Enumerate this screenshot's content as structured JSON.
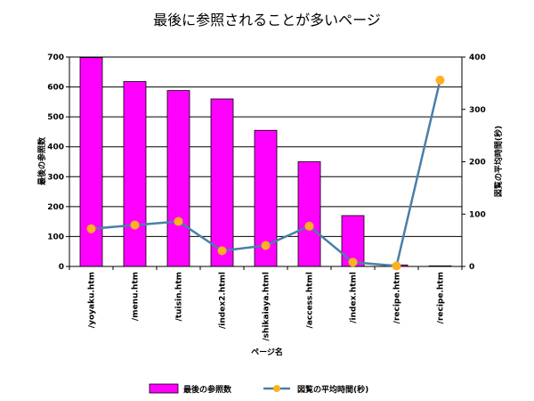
{
  "colors": {
    "bar_fill": "#ff00ff",
    "bar_stroke": "#000000",
    "line": "#4a7fa8",
    "marker": "#ffb020"
  },
  "chart_data": {
    "type": "bar",
    "title": "最後に参照されることが多いページ",
    "xlabel": "ページ名",
    "ylabel_left": "最後の参照数",
    "ylabel_right": "図覧の平均時間(秒)",
    "ylim_left": [
      0,
      700
    ],
    "ylim_right": [
      0,
      400
    ],
    "yticks_left": [
      0,
      100,
      200,
      300,
      400,
      500,
      600,
      700
    ],
    "yticks_right": [
      0,
      100,
      200,
      300,
      400
    ],
    "grid": true,
    "legend_position": "bottom",
    "categories": [
      "/yoyaku.htm",
      "/menu.htm",
      "/tuisin.htm",
      "/index2.html",
      "/shikaiaya.html",
      "/access.html",
      "/index.html",
      "/recipe.htm",
      "/recipe.htm"
    ],
    "series": [
      {
        "name": "最後の参照数",
        "type": "bar",
        "axis": "left",
        "values": [
          698,
          618,
          588,
          560,
          455,
          350,
          170,
          5,
          2
        ]
      },
      {
        "name": "図覧の平均時間(秒)",
        "type": "line",
        "axis": "right",
        "values": [
          72,
          79,
          86,
          30,
          40,
          77,
          8,
          1,
          356
        ]
      }
    ]
  }
}
